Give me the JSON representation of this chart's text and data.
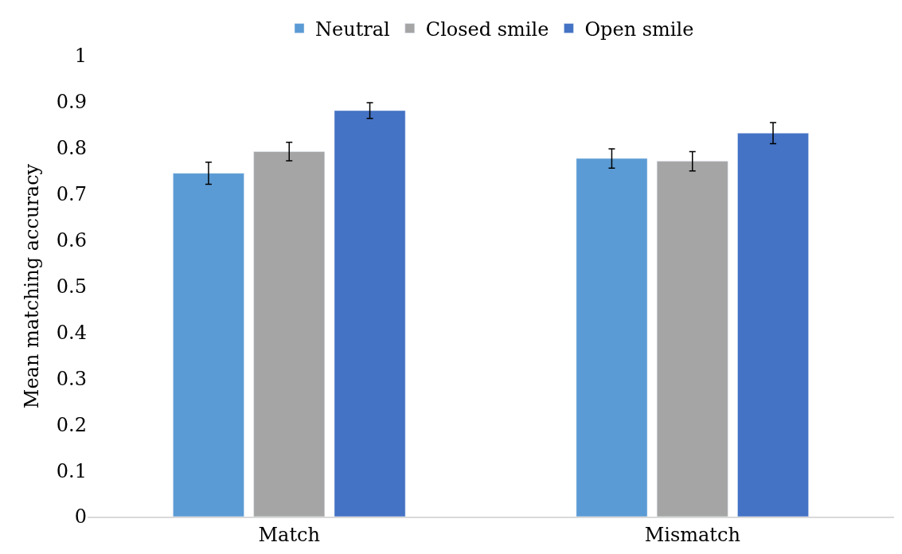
{
  "chart_data": {
    "type": "bar",
    "ylabel": "Mean matching accuracy",
    "categories": [
      "Match",
      "Mismatch"
    ],
    "series": [
      {
        "name": "Neutral",
        "color": "#5b9bd5",
        "values": [
          0.745,
          0.777
        ],
        "errors": [
          0.024,
          0.021
        ]
      },
      {
        "name": "Closed smile",
        "color": "#a5a5a5",
        "values": [
          0.792,
          0.771
        ],
        "errors": [
          0.02,
          0.021
        ]
      },
      {
        "name": "Open smile",
        "color": "#4472c4",
        "values": [
          0.881,
          0.832
        ],
        "errors": [
          0.017,
          0.023
        ]
      }
    ],
    "ylim": [
      0,
      1
    ],
    "yticks": [
      0,
      0.1,
      0.2,
      0.3,
      0.4,
      0.5,
      0.6,
      0.7,
      0.8,
      0.9,
      1
    ],
    "grid": false,
    "legend": "top"
  }
}
